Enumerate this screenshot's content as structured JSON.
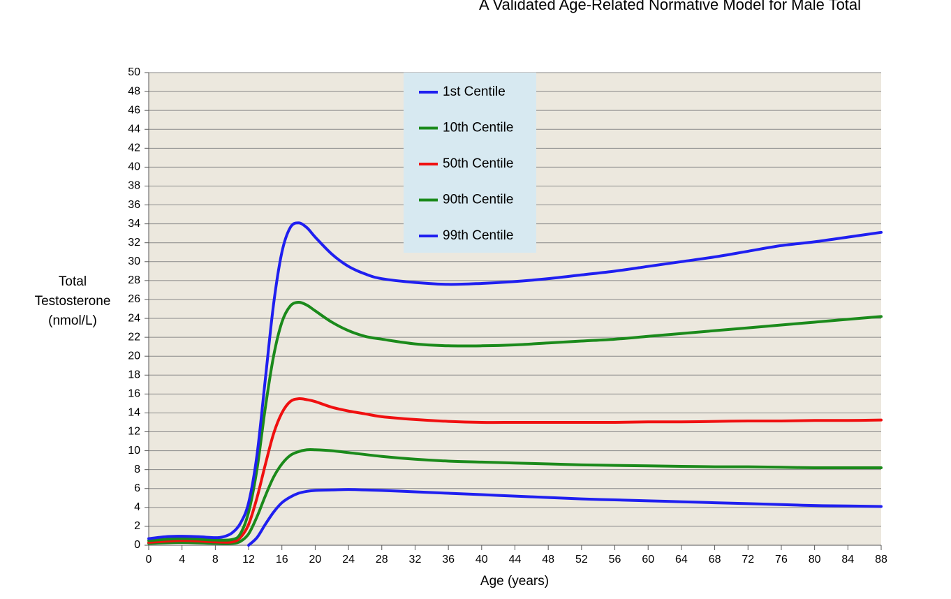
{
  "chart_data": {
    "type": "line",
    "title": "A Validated Age-Related Normative Model for Male Total",
    "xlabel": "Age (years)",
    "ylabel_lines": [
      "Total",
      "Testosterone",
      "(nmol/L)"
    ],
    "xlim": [
      0,
      88
    ],
    "ylim": [
      0,
      50
    ],
    "xticks": [
      0,
      4,
      8,
      12,
      16,
      20,
      24,
      28,
      32,
      36,
      40,
      44,
      48,
      52,
      56,
      60,
      64,
      68,
      72,
      76,
      80,
      84,
      88
    ],
    "yticks": [
      0,
      2,
      4,
      6,
      8,
      10,
      12,
      14,
      16,
      18,
      20,
      22,
      24,
      26,
      28,
      30,
      32,
      34,
      36,
      38,
      40,
      42,
      44,
      46,
      48,
      50
    ],
    "grid": "horizontal",
    "legend_position": "top-center",
    "colors": {
      "plot_background": "#ece8de",
      "legend_background": "#d7e9f1",
      "grid": "#888888",
      "blue": "#1f1ff0",
      "green": "#1b8a1b",
      "red": "#f01010"
    },
    "series": [
      {
        "name": "1st Centile",
        "color": "#1f1ff0",
        "x": [
          12,
          13,
          14,
          15,
          16,
          17,
          18,
          19,
          20,
          22,
          24,
          26,
          28,
          32,
          36,
          40,
          44,
          48,
          52,
          56,
          60,
          64,
          68,
          72,
          76,
          80,
          84,
          88
        ],
        "y": [
          0,
          0.8,
          2.2,
          3.5,
          4.5,
          5.1,
          5.5,
          5.7,
          5.8,
          5.85,
          5.9,
          5.85,
          5.8,
          5.65,
          5.5,
          5.35,
          5.2,
          5.05,
          4.9,
          4.8,
          4.7,
          4.6,
          4.5,
          4.4,
          4.3,
          4.2,
          4.15,
          4.1
        ]
      },
      {
        "name": "10th Centile",
        "color": "#1b8a1b",
        "x": [
          0,
          4,
          8,
          10,
          11,
          12,
          13,
          14,
          15,
          16,
          17,
          18,
          19,
          20,
          22,
          24,
          28,
          32,
          36,
          40,
          44,
          48,
          52,
          56,
          60,
          64,
          68,
          72,
          76,
          80,
          84,
          88
        ],
        "y": [
          0.2,
          0.3,
          0.2,
          0.2,
          0.4,
          1.2,
          3.0,
          5.2,
          7.2,
          8.6,
          9.5,
          9.9,
          10.1,
          10.1,
          10.0,
          9.8,
          9.4,
          9.1,
          8.9,
          8.8,
          8.7,
          8.6,
          8.5,
          8.45,
          8.4,
          8.35,
          8.3,
          8.3,
          8.25,
          8.2,
          8.2,
          8.2
        ]
      },
      {
        "name": "50th Centile",
        "color": "#f01010",
        "x": [
          0,
          4,
          8,
          10,
          11,
          12,
          13,
          14,
          15,
          16,
          17,
          18,
          19,
          20,
          22,
          24,
          26,
          28,
          32,
          36,
          40,
          44,
          48,
          52,
          56,
          60,
          64,
          68,
          72,
          76,
          80,
          84,
          88
        ],
        "y": [
          0.3,
          0.5,
          0.35,
          0.35,
          0.8,
          2.2,
          5.0,
          8.5,
          11.8,
          14.0,
          15.2,
          15.5,
          15.4,
          15.2,
          14.6,
          14.2,
          13.9,
          13.6,
          13.3,
          13.1,
          13.0,
          13.0,
          13.0,
          13.0,
          13.0,
          13.05,
          13.05,
          13.1,
          13.15,
          13.15,
          13.2,
          13.2,
          13.25
        ]
      },
      {
        "name": "90th Centile",
        "color": "#1b8a1b",
        "x": [
          0,
          4,
          8,
          10,
          11,
          12,
          13,
          14,
          15,
          16,
          17,
          18,
          19,
          20,
          22,
          24,
          26,
          28,
          32,
          36,
          40,
          44,
          48,
          52,
          56,
          60,
          64,
          68,
          72,
          76,
          80,
          84,
          88
        ],
        "y": [
          0.5,
          0.7,
          0.55,
          0.6,
          1.2,
          3.5,
          8.0,
          14.5,
          20.0,
          23.6,
          25.3,
          25.7,
          25.4,
          24.8,
          23.6,
          22.7,
          22.1,
          21.8,
          21.3,
          21.1,
          21.1,
          21.2,
          21.4,
          21.6,
          21.8,
          22.1,
          22.4,
          22.7,
          23.0,
          23.3,
          23.6,
          23.9,
          24.2
        ]
      },
      {
        "name": "99th Centile",
        "color": "#1f1ff0",
        "x": [
          0,
          2,
          4,
          6,
          8,
          9,
          10,
          11,
          12,
          13,
          14,
          15,
          16,
          17,
          18,
          19,
          20,
          22,
          24,
          26,
          28,
          32,
          36,
          40,
          44,
          48,
          52,
          56,
          60,
          64,
          68,
          72,
          76,
          80,
          84,
          88
        ],
        "y": [
          0.7,
          0.9,
          0.95,
          0.9,
          0.8,
          0.9,
          1.3,
          2.3,
          4.5,
          9.5,
          17.5,
          25.5,
          31.0,
          33.6,
          34.1,
          33.6,
          32.6,
          30.8,
          29.5,
          28.7,
          28.2,
          27.8,
          27.6,
          27.7,
          27.9,
          28.2,
          28.6,
          29.0,
          29.5,
          30.0,
          30.5,
          31.1,
          31.7,
          32.1,
          32.6,
          33.1
        ]
      }
    ]
  }
}
